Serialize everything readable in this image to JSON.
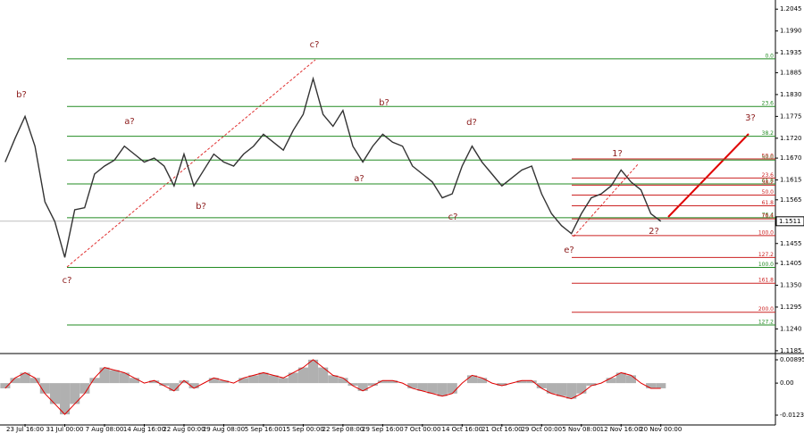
{
  "chart_data": {
    "type": "line",
    "categories": [
      null,
      null,
      "23 Jul 16:00",
      null,
      null,
      null,
      "31 Jul 00:00",
      null,
      null,
      null,
      "7 Aug 08:00",
      null,
      null,
      null,
      "14 Aug 16:00",
      null,
      null,
      null,
      "22 Aug 00:00",
      null,
      null,
      null,
      "29 Aug 08:00",
      null,
      null,
      null,
      "5 Sep 16:00",
      null,
      null,
      null,
      "15 Sep 00:00",
      null,
      null,
      null,
      "22 Sep 08:00",
      null,
      null,
      null,
      "29 Sep 16:00",
      null,
      null,
      null,
      "7 Oct 00:00",
      null,
      null,
      null,
      "14 Oct 16:00",
      null,
      null,
      null,
      "21 Oct 16:00",
      null,
      null,
      null,
      "29 Oct 00:00",
      null,
      null,
      null,
      "5 Nov 08:00",
      null,
      null,
      null,
      "12 Nov 16:00",
      null,
      null,
      null,
      "20 Nov 00:00"
    ],
    "series": [
      {
        "color": "#333333",
        "values": [
          1.166,
          1.172,
          1.1775,
          1.17,
          1.156,
          1.151,
          1.142,
          1.154,
          1.1545,
          1.163,
          1.165,
          1.1665,
          1.17,
          1.168,
          1.166,
          1.167,
          1.165,
          1.16,
          1.168,
          1.16,
          1.164,
          1.168,
          1.166,
          1.165,
          1.168,
          1.17,
          1.173,
          1.171,
          1.169,
          1.174,
          1.178,
          1.187,
          1.178,
          1.175,
          1.179,
          1.17,
          1.166,
          1.17,
          1.173,
          1.171,
          1.17,
          1.165,
          1.163,
          1.161,
          1.157,
          1.158,
          1.165,
          1.17,
          1.166,
          1.163,
          1.16,
          1.162,
          1.164,
          1.165,
          1.158,
          1.153,
          1.15,
          1.148,
          1.153,
          1.157,
          1.158,
          1.16,
          1.164,
          1.161,
          1.159,
          1.153,
          1.1511
        ]
      },
      {
        "color": "#b0b0b0",
        "axis": "y2",
        "values": [
          -0.002,
          0.002,
          0.004,
          0.002,
          -0.004,
          -0.008,
          -0.012,
          -0.008,
          -0.004,
          0.002,
          0.006,
          0.005,
          0.004,
          0.002,
          0,
          0.001,
          -0.001,
          -0.003,
          0.001,
          -0.002,
          0,
          0.002,
          0.001,
          0,
          0.002,
          0.003,
          0.004,
          0.003,
          0.002,
          0.004,
          0.006,
          0.009,
          0.006,
          0.003,
          0.002,
          -0.001,
          -0.003,
          -0.001,
          0.001,
          0.001,
          0,
          -0.002,
          -0.003,
          -0.004,
          -0.005,
          -0.004,
          0,
          0.003,
          0.002,
          0,
          -0.001,
          0,
          0.001,
          0.001,
          -0.002,
          -0.004,
          -0.005,
          -0.006,
          -0.004,
          -0.001,
          0,
          0.002,
          0.004,
          0.003,
          0,
          -0.002,
          -0.002
        ]
      }
    ],
    "ylim": [
      1.1178,
      1.2068
    ],
    "yticks": [
      1.2045,
      {
        "value": 1.199,
        "label": "1.1990"
      },
      1.1935,
      1.1885,
      {
        "value": 1.183,
        "label": "1.1830"
      },
      1.1775,
      {
        "value": 1.172,
        "label": "1.1720"
      },
      {
        "value": 1.167,
        "label": "1.1670"
      },
      1.1615,
      1.1565,
      1.1455,
      1.1405,
      {
        "value": 1.135,
        "label": "1.1350"
      },
      1.1295,
      {
        "value": 1.124,
        "label": "1.1240"
      },
      1.1185
    ],
    "y2lim": [
      -0.01573,
      0.01067
    ],
    "y2ticks": [
      0.00895,
      {
        "value": 0,
        "label": "0.00"
      },
      -0.0123
    ],
    "current_price": 1.1511,
    "fib_main": {
      "color": "#228b22",
      "levels": [
        {
          "label": "0.0",
          "value": 1.192
        },
        {
          "label": "23.6",
          "value": 1.18
        },
        {
          "label": "38.2",
          "value": 1.1725
        },
        {
          "label": "50.0",
          "value": 1.1665
        },
        {
          "label": "61.8",
          "value": 1.1605
        },
        {
          "label": "76.4",
          "value": 1.152
        },
        {
          "label": "100.0",
          "value": 1.1395
        },
        {
          "label": "127.2",
          "value": 1.125
        }
      ]
    },
    "fib_projection": {
      "color": "#cc2222",
      "levels": [
        {
          "label": "50.0",
          "value": 1.1668
        },
        {
          "label": "23.6",
          "value": 1.162
        },
        {
          "label": "38.2",
          "value": 1.1602
        },
        {
          "label": "50.0",
          "value": 1.1577
        },
        {
          "label": "61.8",
          "value": 1.155
        },
        {
          "label": "76.4",
          "value": 1.1517
        },
        {
          "label": "100.0",
          "value": 1.1475
        },
        {
          "label": "127.2",
          "value": 1.142
        },
        {
          "label": "161.8",
          "value": 1.1355
        },
        {
          "label": "200.0",
          "value": 1.1282
        }
      ]
    },
    "annotations": [
      "b?",
      "c?",
      "a?",
      "b?",
      "c?",
      "a?",
      "b?",
      "c?",
      "d?",
      "e?",
      "1?",
      "2?",
      "3?"
    ]
  }
}
